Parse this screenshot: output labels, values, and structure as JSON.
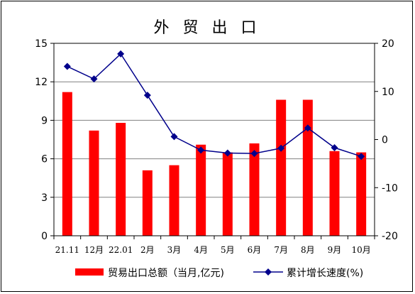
{
  "chart_data": {
    "type": "bar",
    "title": "外 贸 出 口",
    "categories": [
      "21.11",
      "12月",
      "22.01",
      "2月",
      "3月",
      "4月",
      "5月",
      "6月",
      "7月",
      "8月",
      "9月",
      "10月"
    ],
    "series": [
      {
        "name": "贸易出口总额（当月,亿元)",
        "type": "bar",
        "axis": "left",
        "color": "#ff0000",
        "values": [
          11.2,
          8.2,
          8.8,
          5.1,
          5.5,
          7.1,
          6.5,
          7.2,
          10.6,
          10.6,
          6.6,
          6.5
        ]
      },
      {
        "name": "累计增长速度(%)",
        "type": "line",
        "axis": "right",
        "color": "#00008b",
        "values": [
          15.2,
          12.6,
          17.8,
          9.2,
          0.6,
          -2.2,
          -2.8,
          -2.9,
          -1.8,
          2.4,
          -1.7,
          -3.5
        ]
      }
    ],
    "y_left": {
      "ylim": [
        0,
        15
      ],
      "ticks": [
        "0",
        "3",
        "6",
        "9",
        "12",
        "15"
      ]
    },
    "y_right": {
      "ylim": [
        -20,
        20
      ],
      "ticks": [
        "-20",
        "-10",
        "0",
        "10",
        "20"
      ]
    },
    "grid": true,
    "legend_position": "bottom"
  }
}
